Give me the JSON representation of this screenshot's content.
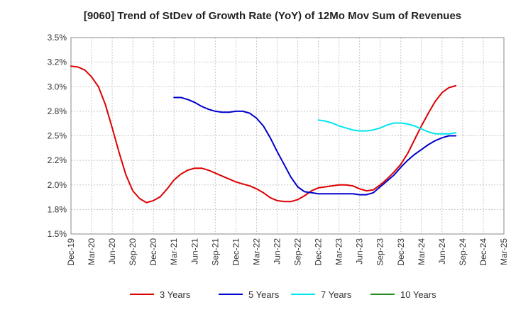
{
  "chart_data": {
    "type": "line",
    "title": "[9060]  Trend of StDev of Growth Rate (YoY) of 12Mo Mov Sum of Revenues",
    "xlabel": "",
    "ylabel": "",
    "ylim": [
      1.5,
      3.5
    ],
    "yticks": [
      1.5,
      1.75,
      2.0,
      2.25,
      2.5,
      2.75,
      3.0,
      3.25,
      3.5
    ],
    "ytick_labels": [
      "1.5%",
      "1.8%",
      "2.0%",
      "2.2%",
      "2.5%",
      "2.8%",
      "3.0%",
      "3.2%",
      "3.5%"
    ],
    "x_ticks": [
      "Dec-19",
      "Mar-20",
      "Jun-20",
      "Sep-20",
      "Dec-20",
      "Mar-21",
      "Jun-21",
      "Sep-21",
      "Dec-21",
      "Mar-22",
      "Jun-22",
      "Sep-22",
      "Dec-22",
      "Mar-23",
      "Jun-23",
      "Sep-23",
      "Dec-23",
      "Mar-24",
      "Jun-24",
      "Sep-24",
      "Dec-24",
      "Mar-25"
    ],
    "grid": true,
    "legend_position": "bottom",
    "series": [
      {
        "name": "3 Years",
        "color": "#dd0000",
        "points": [
          [
            0,
            3.21
          ],
          [
            1,
            3.2
          ],
          [
            2,
            3.17
          ],
          [
            3,
            3.1
          ],
          [
            4,
            3.0
          ],
          [
            5,
            2.82
          ],
          [
            6,
            2.58
          ],
          [
            7,
            2.33
          ],
          [
            8,
            2.1
          ],
          [
            9,
            1.94
          ],
          [
            10,
            1.86
          ],
          [
            11,
            1.82
          ],
          [
            12,
            1.84
          ],
          [
            13,
            1.88
          ],
          [
            14,
            1.96
          ],
          [
            15,
            2.05
          ],
          [
            16,
            2.11
          ],
          [
            17,
            2.15
          ],
          [
            18,
            2.17
          ],
          [
            19,
            2.17
          ],
          [
            20,
            2.15
          ],
          [
            21,
            2.12
          ],
          [
            22,
            2.09
          ],
          [
            23,
            2.06
          ],
          [
            24,
            2.03
          ],
          [
            25,
            2.01
          ],
          [
            26,
            1.99
          ],
          [
            27,
            1.96
          ],
          [
            28,
            1.92
          ],
          [
            29,
            1.87
          ],
          [
            30,
            1.84
          ],
          [
            31,
            1.83
          ],
          [
            32,
            1.83
          ],
          [
            33,
            1.85
          ],
          [
            34,
            1.89
          ],
          [
            35,
            1.94
          ],
          [
            36,
            1.97
          ],
          [
            37,
            1.98
          ],
          [
            38,
            1.99
          ],
          [
            39,
            2.0
          ],
          [
            40,
            2.0
          ],
          [
            41,
            1.99
          ],
          [
            42,
            1.96
          ],
          [
            43,
            1.94
          ],
          [
            44,
            1.95
          ],
          [
            45,
            2.0
          ],
          [
            46,
            2.06
          ],
          [
            47,
            2.13
          ],
          [
            48,
            2.21
          ],
          [
            49,
            2.32
          ],
          [
            50,
            2.46
          ],
          [
            51,
            2.6
          ],
          [
            52,
            2.73
          ],
          [
            53,
            2.85
          ],
          [
            54,
            2.94
          ],
          [
            55,
            2.99
          ],
          [
            56,
            3.01
          ]
        ]
      },
      {
        "name": "5 Years",
        "color": "#0000cc",
        "points": [
          [
            15,
            2.89
          ],
          [
            16,
            2.89
          ],
          [
            17,
            2.87
          ],
          [
            18,
            2.84
          ],
          [
            19,
            2.8
          ],
          [
            20,
            2.77
          ],
          [
            21,
            2.75
          ],
          [
            22,
            2.74
          ],
          [
            23,
            2.74
          ],
          [
            24,
            2.75
          ],
          [
            25,
            2.75
          ],
          [
            26,
            2.73
          ],
          [
            27,
            2.68
          ],
          [
            28,
            2.6
          ],
          [
            29,
            2.48
          ],
          [
            30,
            2.34
          ],
          [
            31,
            2.21
          ],
          [
            32,
            2.08
          ],
          [
            33,
            1.98
          ],
          [
            34,
            1.93
          ],
          [
            35,
            1.92
          ],
          [
            36,
            1.91
          ],
          [
            37,
            1.91
          ],
          [
            38,
            1.91
          ],
          [
            39,
            1.91
          ],
          [
            40,
            1.91
          ],
          [
            41,
            1.91
          ],
          [
            42,
            1.9
          ],
          [
            43,
            1.9
          ],
          [
            44,
            1.92
          ],
          [
            45,
            1.98
          ],
          [
            46,
            2.04
          ],
          [
            47,
            2.1
          ],
          [
            48,
            2.18
          ],
          [
            49,
            2.25
          ],
          [
            50,
            2.31
          ],
          [
            51,
            2.36
          ],
          [
            52,
            2.41
          ],
          [
            53,
            2.45
          ],
          [
            54,
            2.48
          ],
          [
            55,
            2.5
          ],
          [
            56,
            2.5
          ]
        ]
      },
      {
        "name": "7 Years",
        "color": "#00e5ee",
        "points": [
          [
            36,
            2.66
          ],
          [
            37,
            2.65
          ],
          [
            38,
            2.63
          ],
          [
            39,
            2.6
          ],
          [
            40,
            2.58
          ],
          [
            41,
            2.56
          ],
          [
            42,
            2.55
          ],
          [
            43,
            2.55
          ],
          [
            44,
            2.56
          ],
          [
            45,
            2.58
          ],
          [
            46,
            2.61
          ],
          [
            47,
            2.63
          ],
          [
            48,
            2.63
          ],
          [
            49,
            2.62
          ],
          [
            50,
            2.6
          ],
          [
            51,
            2.57
          ],
          [
            52,
            2.54
          ],
          [
            53,
            2.52
          ],
          [
            54,
            2.52
          ],
          [
            55,
            2.52
          ],
          [
            56,
            2.53
          ]
        ]
      },
      {
        "name": "10 Years",
        "color": "#228b22",
        "points": []
      }
    ]
  }
}
